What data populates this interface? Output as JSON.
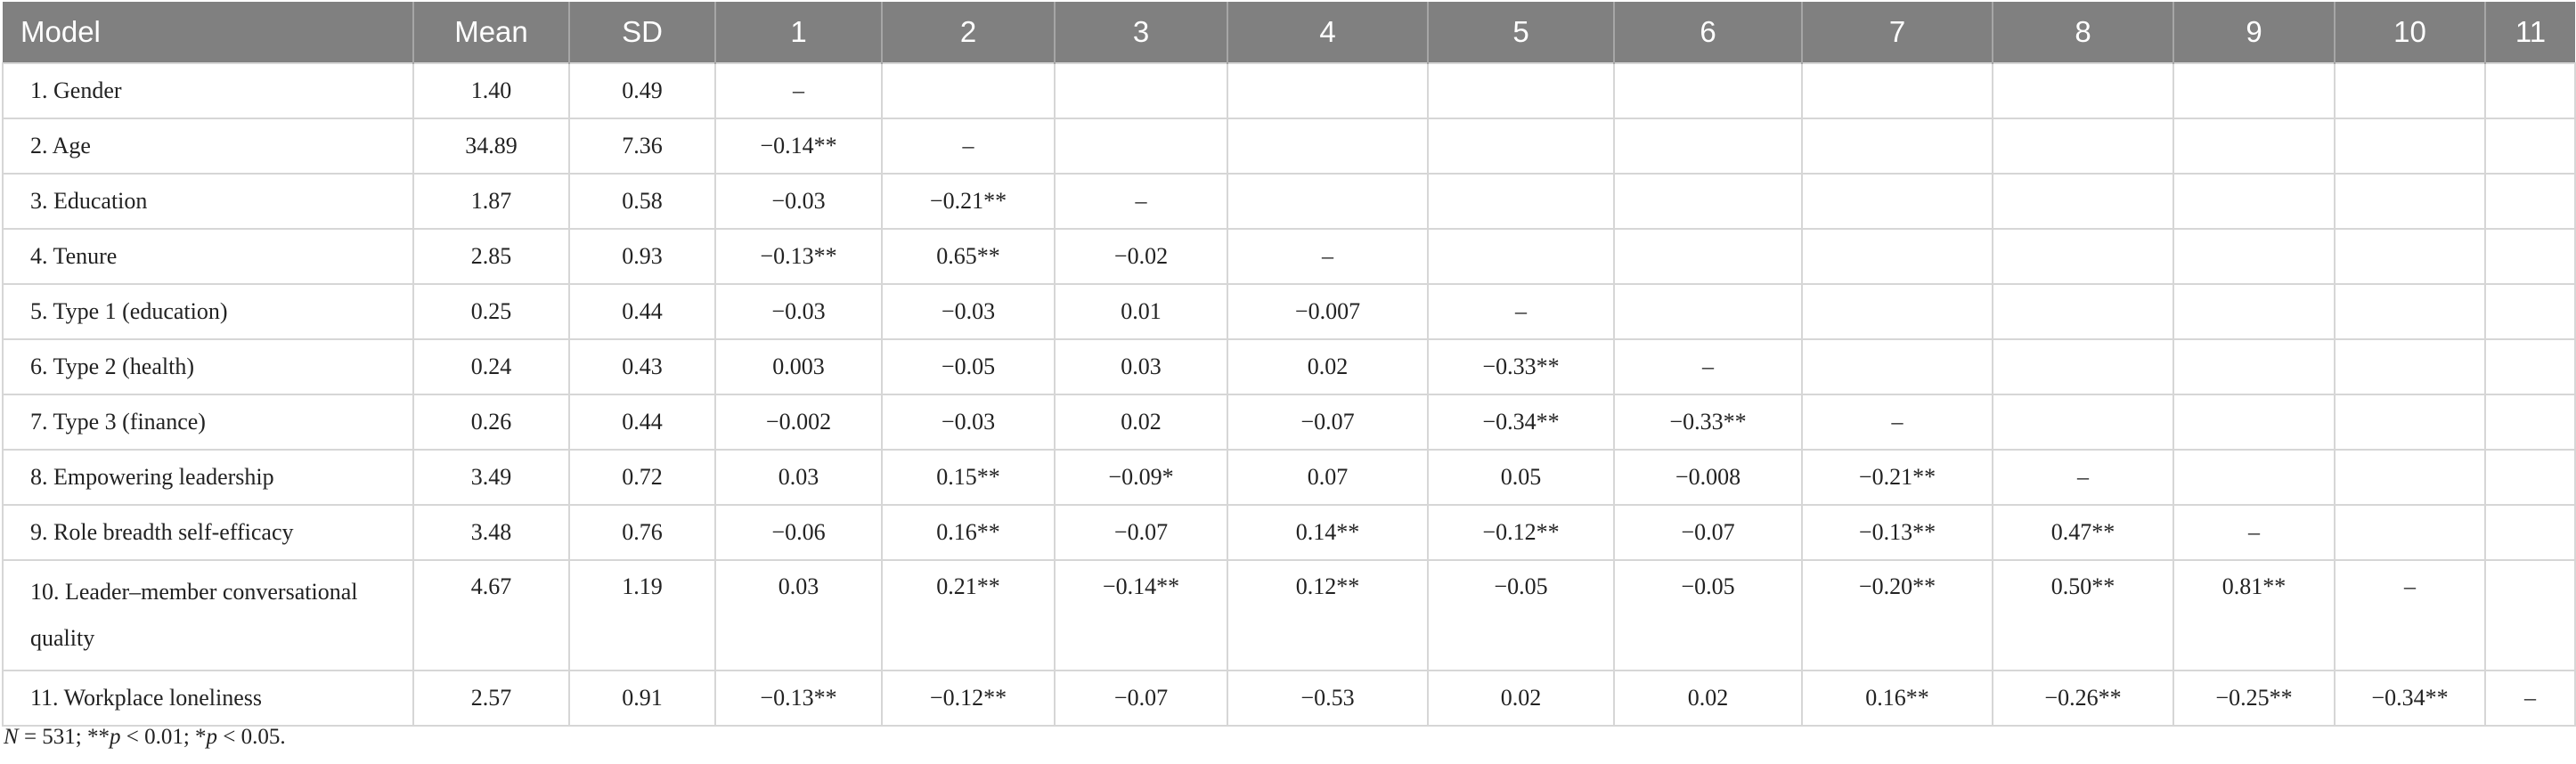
{
  "table": {
    "headers": [
      "Model",
      "Mean",
      "SD",
      "1",
      "2",
      "3",
      "4",
      "5",
      "6",
      "7",
      "8",
      "9",
      "10",
      "11"
    ],
    "rows": [
      {
        "label": "1.  Gender",
        "mean": "1.40",
        "sd": "0.49",
        "cells": [
          "–",
          "",
          "",
          "",
          "",
          "",
          "",
          "",
          "",
          "",
          ""
        ]
      },
      {
        "label": "2.  Age",
        "mean": "34.89",
        "sd": "7.36",
        "cells": [
          "−0.14**",
          "–",
          "",
          "",
          "",
          "",
          "",
          "",
          "",
          "",
          ""
        ]
      },
      {
        "label": "3.  Education",
        "mean": "1.87",
        "sd": "0.58",
        "cells": [
          "−0.03",
          "−0.21**",
          "–",
          "",
          "",
          "",
          "",
          "",
          "",
          "",
          ""
        ]
      },
      {
        "label": "4.  Tenure",
        "mean": "2.85",
        "sd": "0.93",
        "cells": [
          "−0.13**",
          "0.65**",
          "−0.02",
          "–",
          "",
          "",
          "",
          "",
          "",
          "",
          ""
        ]
      },
      {
        "label": "5.  Type 1 (education)",
        "mean": "0.25",
        "sd": "0.44",
        "cells": [
          "−0.03",
          "−0.03",
          "0.01",
          "−0.007",
          "–",
          "",
          "",
          "",
          "",
          "",
          ""
        ]
      },
      {
        "label": "6.  Type 2 (health)",
        "mean": "0.24",
        "sd": "0.43",
        "cells": [
          "0.003",
          "−0.05",
          "0.03",
          "0.02",
          "−0.33**",
          "–",
          "",
          "",
          "",
          "",
          ""
        ]
      },
      {
        "label": "7.  Type 3 (finance)",
        "mean": "0.26",
        "sd": "0.44",
        "cells": [
          "−0.002",
          "−0.03",
          "0.02",
          "−0.07",
          "−0.34**",
          "−0.33**",
          "–",
          "",
          "",
          "",
          ""
        ]
      },
      {
        "label": "8.  Empowering leadership",
        "mean": "3.49",
        "sd": "0.72",
        "cells": [
          "0.03",
          "0.15**",
          "−0.09*",
          "0.07",
          "0.05",
          "−0.008",
          "−0.21**",
          "–",
          "",
          "",
          ""
        ]
      },
      {
        "label": "9.  Role breadth self-efficacy",
        "mean": "3.48",
        "sd": "0.76",
        "cells": [
          "−0.06",
          "0.16**",
          "−0.07",
          "0.14**",
          "−0.12**",
          "−0.07",
          "−0.13**",
          "0.47**",
          "–",
          "",
          ""
        ]
      },
      {
        "label": "10.  Leader–member conversational quality",
        "mean": "4.67",
        "sd": "1.19",
        "cells": [
          "0.03",
          "0.21**",
          "−0.14**",
          "0.12**",
          "−0.05",
          "−0.05",
          "−0.20**",
          "0.50**",
          "0.81**",
          "–",
          ""
        ]
      },
      {
        "label": "11.  Workplace loneliness",
        "mean": "2.57",
        "sd": "0.91",
        "cells": [
          "−0.13**",
          "−0.12**",
          "−0.07",
          "−0.53",
          "0.02",
          "0.02",
          "0.16**",
          "−0.26**",
          "−0.25**",
          "−0.34**",
          "–"
        ]
      }
    ]
  },
  "note": {
    "n_symbol": "N",
    "n_text": " = 531; **",
    "p1_symbol": "p",
    "p1_text": " < 0.01; *",
    "p2_symbol": "p",
    "p2_text": " < 0.05."
  }
}
